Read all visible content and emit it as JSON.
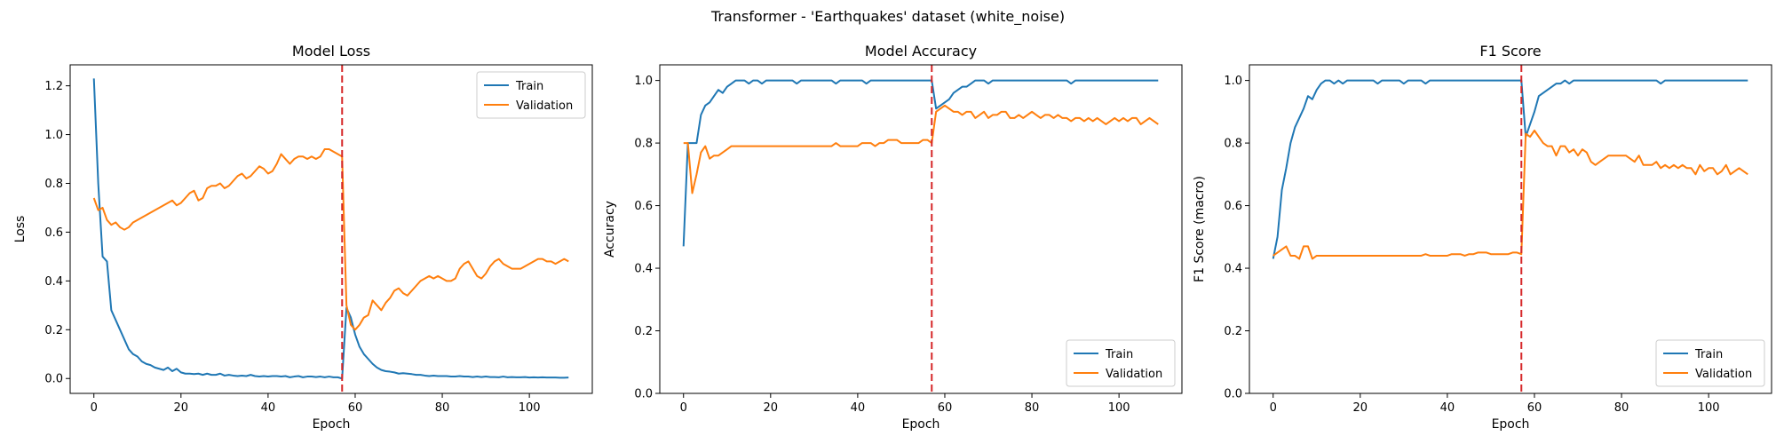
{
  "suptitle": "Transformer - 'Earthquakes' dataset (white_noise)",
  "colors": {
    "train": "#1f77b4",
    "validation": "#ff7f0e",
    "marker": "#d62728"
  },
  "chart_data": [
    {
      "type": "line",
      "title": "Model Loss",
      "xlabel": "Epoch",
      "ylabel": "Loss",
      "xlim": [
        -5.45,
        114.45
      ],
      "ylim": [
        -0.061,
        1.286
      ],
      "xticks": [
        0,
        20,
        40,
        60,
        80,
        100
      ],
      "yticks": [
        0.0,
        0.2,
        0.4,
        0.6,
        0.8,
        1.0,
        1.2
      ],
      "ytick_labels": [
        "0.0",
        "0.2",
        "0.4",
        "0.6",
        "0.8",
        "1.0",
        "1.2"
      ],
      "legend_loc": "upper right",
      "vline_x": 57,
      "series": [
        {
          "name": "Train",
          "color": "#1f77b4",
          "values": [
            1.23,
            0.8,
            0.5,
            0.48,
            0.28,
            0.24,
            0.2,
            0.16,
            0.12,
            0.1,
            0.09,
            0.07,
            0.06,
            0.055,
            0.045,
            0.04,
            0.035,
            0.045,
            0.03,
            0.04,
            0.025,
            0.02,
            0.02,
            0.018,
            0.02,
            0.015,
            0.02,
            0.015,
            0.015,
            0.02,
            0.012,
            0.015,
            0.012,
            0.01,
            0.012,
            0.01,
            0.015,
            0.01,
            0.008,
            0.01,
            0.008,
            0.01,
            0.01,
            0.008,
            0.01,
            0.005,
            0.008,
            0.01,
            0.005,
            0.008,
            0.008,
            0.006,
            0.008,
            0.005,
            0.008,
            0.005,
            0.005,
            0.0,
            0.29,
            0.25,
            0.18,
            0.13,
            0.1,
            0.08,
            0.06,
            0.045,
            0.035,
            0.03,
            0.028,
            0.025,
            0.02,
            0.022,
            0.02,
            0.018,
            0.015,
            0.015,
            0.012,
            0.01,
            0.012,
            0.01,
            0.01,
            0.01,
            0.008,
            0.008,
            0.01,
            0.008,
            0.008,
            0.006,
            0.008,
            0.006,
            0.008,
            0.006,
            0.006,
            0.005,
            0.008,
            0.005,
            0.006,
            0.005,
            0.005,
            0.006,
            0.004,
            0.005,
            0.004,
            0.005,
            0.004,
            0.004,
            0.004,
            0.003,
            0.003,
            0.004
          ]
        },
        {
          "name": "Validation",
          "color": "#ff7f0e",
          "values": [
            0.74,
            0.69,
            0.7,
            0.65,
            0.63,
            0.64,
            0.62,
            0.61,
            0.62,
            0.64,
            0.65,
            0.66,
            0.67,
            0.68,
            0.69,
            0.7,
            0.71,
            0.72,
            0.73,
            0.71,
            0.72,
            0.74,
            0.76,
            0.77,
            0.73,
            0.74,
            0.78,
            0.79,
            0.79,
            0.8,
            0.78,
            0.79,
            0.81,
            0.83,
            0.84,
            0.82,
            0.83,
            0.85,
            0.87,
            0.86,
            0.84,
            0.85,
            0.88,
            0.92,
            0.9,
            0.88,
            0.9,
            0.91,
            0.91,
            0.9,
            0.91,
            0.9,
            0.91,
            0.94,
            0.94,
            0.93,
            0.92,
            0.91,
            0.3,
            0.22,
            0.2,
            0.22,
            0.25,
            0.26,
            0.32,
            0.3,
            0.28,
            0.31,
            0.33,
            0.36,
            0.37,
            0.35,
            0.34,
            0.36,
            0.38,
            0.4,
            0.41,
            0.42,
            0.41,
            0.42,
            0.41,
            0.4,
            0.4,
            0.41,
            0.45,
            0.47,
            0.48,
            0.45,
            0.42,
            0.41,
            0.43,
            0.46,
            0.48,
            0.49,
            0.47,
            0.46,
            0.45,
            0.45,
            0.45,
            0.46,
            0.47,
            0.48,
            0.49,
            0.49,
            0.48,
            0.48,
            0.47,
            0.48,
            0.49,
            0.48
          ]
        }
      ]
    },
    {
      "type": "line",
      "title": "Model Accuracy",
      "xlabel": "Epoch",
      "ylabel": "Accuracy",
      "xlim": [
        -5.45,
        114.45
      ],
      "ylim": [
        0.0,
        1.05
      ],
      "xticks": [
        0,
        20,
        40,
        60,
        80,
        100
      ],
      "yticks": [
        0.0,
        0.2,
        0.4,
        0.6,
        0.8,
        1.0
      ],
      "ytick_labels": [
        "0.0",
        "0.2",
        "0.4",
        "0.6",
        "0.8",
        "1.0"
      ],
      "legend_loc": "lower right",
      "vline_x": 57,
      "series": [
        {
          "name": "Train",
          "color": "#1f77b4",
          "values": [
            0.47,
            0.8,
            0.8,
            0.8,
            0.89,
            0.92,
            0.93,
            0.95,
            0.97,
            0.96,
            0.98,
            0.99,
            1.0,
            1.0,
            1.0,
            0.99,
            1.0,
            1.0,
            0.99,
            1.0,
            1.0,
            1.0,
            1.0,
            1.0,
            1.0,
            1.0,
            0.99,
            1.0,
            1.0,
            1.0,
            1.0,
            1.0,
            1.0,
            1.0,
            1.0,
            0.99,
            1.0,
            1.0,
            1.0,
            1.0,
            1.0,
            1.0,
            0.99,
            1.0,
            1.0,
            1.0,
            1.0,
            1.0,
            1.0,
            1.0,
            1.0,
            1.0,
            1.0,
            1.0,
            1.0,
            1.0,
            1.0,
            1.0,
            0.91,
            0.92,
            0.93,
            0.94,
            0.96,
            0.97,
            0.98,
            0.98,
            0.99,
            1.0,
            1.0,
            1.0,
            0.99,
            1.0,
            1.0,
            1.0,
            1.0,
            1.0,
            1.0,
            1.0,
            1.0,
            1.0,
            1.0,
            1.0,
            1.0,
            1.0,
            1.0,
            1.0,
            1.0,
            1.0,
            1.0,
            0.99,
            1.0,
            1.0,
            1.0,
            1.0,
            1.0,
            1.0,
            1.0,
            1.0,
            1.0,
            1.0,
            1.0,
            1.0,
            1.0,
            1.0,
            1.0,
            1.0,
            1.0,
            1.0,
            1.0,
            1.0
          ]
        },
        {
          "name": "Validation",
          "color": "#ff7f0e",
          "values": [
            0.8,
            0.8,
            0.64,
            0.7,
            0.77,
            0.79,
            0.75,
            0.76,
            0.76,
            0.77,
            0.78,
            0.79,
            0.79,
            0.79,
            0.79,
            0.79,
            0.79,
            0.79,
            0.79,
            0.79,
            0.79,
            0.79,
            0.79,
            0.79,
            0.79,
            0.79,
            0.79,
            0.79,
            0.79,
            0.79,
            0.79,
            0.79,
            0.79,
            0.79,
            0.79,
            0.8,
            0.79,
            0.79,
            0.79,
            0.79,
            0.79,
            0.8,
            0.8,
            0.8,
            0.79,
            0.8,
            0.8,
            0.81,
            0.81,
            0.81,
            0.8,
            0.8,
            0.8,
            0.8,
            0.8,
            0.81,
            0.81,
            0.8,
            0.9,
            0.91,
            0.92,
            0.91,
            0.9,
            0.9,
            0.89,
            0.9,
            0.9,
            0.88,
            0.89,
            0.9,
            0.88,
            0.89,
            0.89,
            0.9,
            0.9,
            0.88,
            0.88,
            0.89,
            0.88,
            0.89,
            0.9,
            0.89,
            0.88,
            0.89,
            0.89,
            0.88,
            0.89,
            0.88,
            0.88,
            0.87,
            0.88,
            0.88,
            0.87,
            0.88,
            0.87,
            0.88,
            0.87,
            0.86,
            0.87,
            0.88,
            0.87,
            0.88,
            0.87,
            0.88,
            0.88,
            0.86,
            0.87,
            0.88,
            0.87,
            0.86
          ]
        }
      ]
    },
    {
      "type": "line",
      "title": "F1 Score",
      "xlabel": "Epoch",
      "ylabel": "F1 Score (macro)",
      "xlim": [
        -5.45,
        114.45
      ],
      "ylim": [
        0.0,
        1.05
      ],
      "xticks": [
        0,
        20,
        40,
        60,
        80,
        100
      ],
      "yticks": [
        0.0,
        0.2,
        0.4,
        0.6,
        0.8,
        1.0
      ],
      "ytick_labels": [
        "0.0",
        "0.2",
        "0.4",
        "0.6",
        "0.8",
        "1.0"
      ],
      "legend_loc": "lower right",
      "vline_x": 57,
      "series": [
        {
          "name": "Train",
          "color": "#1f77b4",
          "values": [
            0.43,
            0.5,
            0.65,
            0.72,
            0.8,
            0.85,
            0.88,
            0.91,
            0.95,
            0.94,
            0.97,
            0.99,
            1.0,
            1.0,
            0.99,
            1.0,
            0.99,
            1.0,
            1.0,
            1.0,
            1.0,
            1.0,
            1.0,
            1.0,
            0.99,
            1.0,
            1.0,
            1.0,
            1.0,
            1.0,
            0.99,
            1.0,
            1.0,
            1.0,
            1.0,
            0.99,
            1.0,
            1.0,
            1.0,
            1.0,
            1.0,
            1.0,
            1.0,
            1.0,
            1.0,
            1.0,
            1.0,
            1.0,
            1.0,
            1.0,
            1.0,
            1.0,
            1.0,
            1.0,
            1.0,
            1.0,
            1.0,
            1.0,
            0.82,
            0.86,
            0.9,
            0.95,
            0.96,
            0.97,
            0.98,
            0.99,
            0.99,
            1.0,
            0.99,
            1.0,
            1.0,
            1.0,
            1.0,
            1.0,
            1.0,
            1.0,
            1.0,
            1.0,
            1.0,
            1.0,
            1.0,
            1.0,
            1.0,
            1.0,
            1.0,
            1.0,
            1.0,
            1.0,
            1.0,
            0.99,
            1.0,
            1.0,
            1.0,
            1.0,
            1.0,
            1.0,
            1.0,
            1.0,
            1.0,
            1.0,
            1.0,
            1.0,
            1.0,
            1.0,
            1.0,
            1.0,
            1.0,
            1.0,
            1.0,
            1.0
          ]
        },
        {
          "name": "Validation",
          "color": "#ff7f0e",
          "values": [
            0.44,
            0.45,
            0.46,
            0.47,
            0.44,
            0.44,
            0.43,
            0.47,
            0.47,
            0.43,
            0.44,
            0.44,
            0.44,
            0.44,
            0.44,
            0.44,
            0.44,
            0.44,
            0.44,
            0.44,
            0.44,
            0.44,
            0.44,
            0.44,
            0.44,
            0.44,
            0.44,
            0.44,
            0.44,
            0.44,
            0.44,
            0.44,
            0.44,
            0.44,
            0.44,
            0.445,
            0.44,
            0.44,
            0.44,
            0.44,
            0.44,
            0.445,
            0.445,
            0.445,
            0.44,
            0.445,
            0.445,
            0.45,
            0.45,
            0.45,
            0.445,
            0.445,
            0.445,
            0.445,
            0.445,
            0.45,
            0.45,
            0.445,
            0.83,
            0.82,
            0.84,
            0.82,
            0.8,
            0.79,
            0.79,
            0.76,
            0.79,
            0.79,
            0.77,
            0.78,
            0.76,
            0.78,
            0.77,
            0.74,
            0.73,
            0.74,
            0.75,
            0.76,
            0.76,
            0.76,
            0.76,
            0.76,
            0.75,
            0.74,
            0.76,
            0.73,
            0.73,
            0.73,
            0.74,
            0.72,
            0.73,
            0.72,
            0.73,
            0.72,
            0.73,
            0.72,
            0.72,
            0.7,
            0.73,
            0.71,
            0.72,
            0.72,
            0.7,
            0.71,
            0.73,
            0.7,
            0.71,
            0.72,
            0.71,
            0.7
          ]
        }
      ]
    }
  ]
}
